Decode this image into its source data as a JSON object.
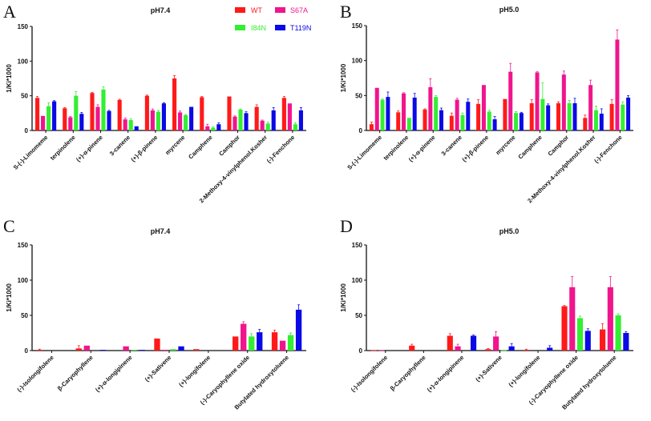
{
  "colors": {
    "WT": "#ff1a1a",
    "S67A": "#f0158c",
    "I84N": "#33ee33",
    "T119N": "#0a0ae6"
  },
  "legend": {
    "position": "top-right of panel A",
    "items": [
      "WT",
      "S67A",
      "I84N",
      "T119N"
    ]
  },
  "chart_data": [
    {
      "panel": "A",
      "type": "bar",
      "title": "pH7.4",
      "ylabel": "1/Ki*1000",
      "xlabel": "",
      "ylim": [
        0,
        150
      ],
      "yticks": [
        "0",
        "50",
        "100",
        "150"
      ],
      "grid": false,
      "categories": [
        "S-(-)-Limomeme",
        "terpinolene",
        "(+)-α-pinene",
        "3-canene",
        "(+)-β-pinene",
        "myrcene",
        "Camphene",
        "Camphor",
        "2-Methoxy-4-vinylphenol.Kosher",
        "(-)-Fenchone"
      ],
      "series": [
        {
          "name": "WT",
          "values": [
            47,
            32,
            54,
            44,
            50,
            75,
            48,
            49,
            34,
            47
          ],
          "errors": [
            2,
            1,
            1,
            1,
            1,
            4,
            1,
            0,
            3,
            2
          ]
        },
        {
          "name": "S67A",
          "values": [
            21,
            19,
            34,
            16,
            29,
            26,
            6,
            20,
            14,
            39
          ],
          "errors": [
            0,
            1,
            3,
            2,
            2,
            2,
            3,
            1,
            1,
            0
          ]
        },
        {
          "name": "I84N",
          "values": [
            35,
            50,
            59,
            15,
            27,
            22,
            4,
            30,
            10,
            9
          ],
          "errors": [
            5,
            6,
            4,
            2,
            2,
            1,
            1,
            1,
            2,
            2
          ]
        },
        {
          "name": "T119N",
          "values": [
            42,
            24,
            28,
            6,
            39,
            34,
            9,
            25,
            29,
            29
          ],
          "errors": [
            1,
            2,
            1,
            0,
            1,
            0,
            2,
            2,
            4,
            4
          ]
        }
      ]
    },
    {
      "panel": "B",
      "type": "bar",
      "title": "pH5.0",
      "ylabel": "1/Ki*1000",
      "xlabel": "",
      "ylim": [
        0,
        150
      ],
      "yticks": [
        "0",
        "50",
        "100",
        "150"
      ],
      "grid": false,
      "categories": [
        "S-(-)-Limomeme",
        "terpinolene",
        "(+)-α-pinene",
        "3-canene",
        "(+)-β-pinene",
        "myrcene",
        "Camphene",
        "Camphor",
        "2-Methoxy-4-vinylphenol.Kosher",
        "(-)-Fenchone"
      ],
      "series": [
        {
          "name": "WT",
          "values": [
            9,
            26,
            30,
            21,
            38,
            45,
            39,
            39,
            18,
            38
          ],
          "errors": [
            3,
            2,
            1,
            4,
            6,
            0,
            5,
            2,
            4,
            6
          ]
        },
        {
          "name": "S67A",
          "values": [
            61,
            53,
            62,
            44,
            65,
            84,
            83,
            80,
            65,
            130
          ],
          "errors": [
            0,
            1,
            12,
            2,
            0,
            12,
            1,
            5,
            7,
            14
          ]
        },
        {
          "name": "I84N",
          "values": [
            44,
            18,
            48,
            22,
            27,
            25,
            45,
            39,
            29,
            37
          ],
          "errors": [
            1,
            0,
            2,
            3,
            2,
            2,
            23,
            4,
            6,
            4
          ]
        },
        {
          "name": "T119N",
          "values": [
            48,
            47,
            29,
            41,
            16,
            25,
            36,
            39,
            24,
            47
          ],
          "errors": [
            7,
            6,
            3,
            4,
            4,
            1,
            2,
            7,
            7,
            3
          ]
        }
      ]
    },
    {
      "panel": "C",
      "type": "bar",
      "title": "pH7.4",
      "ylabel": "1/Ki*1000",
      "xlabel": "",
      "ylim": [
        0,
        150
      ],
      "yticks": [
        "0",
        "50",
        "100",
        "150"
      ],
      "grid": false,
      "categories": [
        "(-)-Isolongifolene",
        "β-Caryophyllene",
        "(+)-α-longipinene",
        "(+)-Sativene",
        "(+)-longifolene",
        "(-)-Caryophyllene oxide",
        "Butylated hydroxytoluene"
      ],
      "series": [
        {
          "name": "WT",
          "values": [
            1,
            3,
            0,
            17,
            2,
            20,
            26
          ],
          "errors": [
            1,
            4,
            0,
            0,
            0,
            0,
            3
          ]
        },
        {
          "name": "S67A",
          "values": [
            0,
            7,
            6,
            1,
            0,
            38,
            14
          ],
          "errors": [
            0,
            0,
            0,
            0,
            0,
            3,
            0
          ]
        },
        {
          "name": "I84N",
          "values": [
            0,
            0,
            1,
            2,
            0,
            20,
            22
          ],
          "errors": [
            0,
            0,
            0,
            0,
            0,
            4,
            3
          ]
        },
        {
          "name": "T119N",
          "values": [
            0,
            1,
            1,
            6,
            0,
            26,
            58
          ],
          "errors": [
            0,
            0,
            0,
            0,
            0,
            4,
            7
          ]
        }
      ]
    },
    {
      "panel": "D",
      "type": "bar",
      "title": "pH5.0",
      "ylabel": "1/Ki*1000",
      "xlabel": "",
      "ylim": [
        0,
        150
      ],
      "yticks": [
        "0",
        "50",
        "100",
        "150"
      ],
      "grid": false,
      "categories": [
        "(-)-Isolongifolene",
        "β-Caryophyllene",
        "(+)-α-longipinene",
        "(+)-Sativene",
        "(+)-longifolene",
        "(-)-Caryophyllene oxide",
        "Butylated hydroxytoluene"
      ],
      "series": [
        {
          "name": "WT",
          "values": [
            0.5,
            7,
            21,
            2,
            1,
            63,
            30
          ],
          "errors": [
            0,
            2,
            3,
            1,
            1,
            1,
            8
          ]
        },
        {
          "name": "S67A",
          "values": [
            0.5,
            0,
            6,
            20,
            0,
            90,
            90
          ],
          "errors": [
            0,
            0,
            3,
            7,
            0,
            15,
            15
          ]
        },
        {
          "name": "I84N",
          "values": [
            0,
            0,
            0,
            0.5,
            0,
            46,
            50
          ],
          "errors": [
            0,
            0,
            0,
            0,
            0,
            3,
            2
          ]
        },
        {
          "name": "T119N",
          "values": [
            0,
            0,
            21,
            6,
            4,
            28,
            25
          ],
          "errors": [
            0,
            0,
            1,
            4,
            3,
            3,
            2
          ]
        }
      ]
    }
  ]
}
